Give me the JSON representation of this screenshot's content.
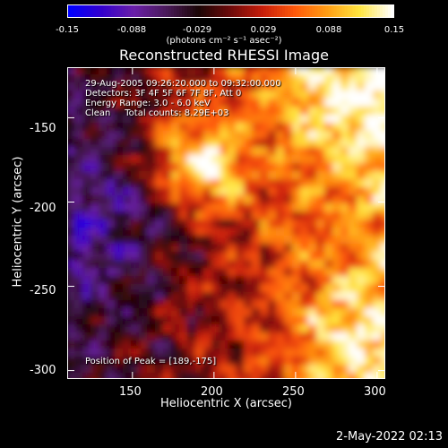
{
  "colorbar": {
    "ticks": [
      "-0.15",
      "-0.088",
      "-0.029",
      "0.029",
      "0.088",
      "0.15"
    ],
    "units": "(photons cm⁻² s⁻¹ asec⁻²)",
    "stops": [
      "#0000ff",
      "#3300cc",
      "#6a1fa8",
      "#4a1a5a",
      "#1a0505",
      "#6e0a0a",
      "#c81e0a",
      "#ff5a0a",
      "#ff9e14",
      "#ffe640",
      "#ffffff"
    ]
  },
  "chart_data": {
    "type": "heatmap",
    "title": "Reconstructed RHESSI Image",
    "xlabel": "Heliocentric X (arcsec)",
    "ylabel": "Heliocentric Y (arcsec)",
    "xlim": [
      110,
      305
    ],
    "ylim": [
      -305,
      -120
    ],
    "xticks": [
      150,
      200,
      250,
      300
    ],
    "yticks": [
      -150,
      -200,
      -250,
      -300
    ],
    "colorbar_range": [
      -0.15,
      0.15
    ],
    "peak": [
      189,
      -175
    ],
    "annotations": {
      "time": "29-Aug-2005 09:26:20.000 to 09:32:00.000",
      "detectors": "Detectors: 3F 4F 5F 6F 7F 8F, Att 0",
      "energy": "Energy Range: 3.0 - 6.0 keV",
      "clean": "Clean     Total counts: 8.29E+03",
      "peak_text": "Position of Peak = [189,-175]"
    }
  },
  "footer": {
    "date": "2-May-2022 02:13"
  }
}
